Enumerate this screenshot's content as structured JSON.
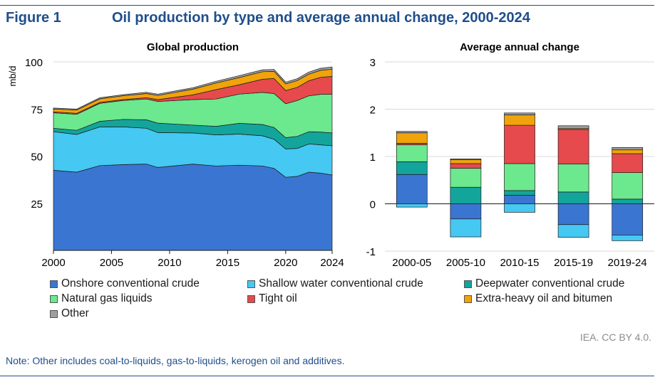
{
  "header": {
    "figure_label": "Figure 1",
    "title": "Oil production by type and average annual change, 2000-2024"
  },
  "legend": [
    {
      "label": "Onshore conventional crude",
      "color": "#3a75d1"
    },
    {
      "label": "Shallow water conventional crude",
      "color": "#45c8f2"
    },
    {
      "label": "Deepwater conventional crude",
      "color": "#13a59b"
    },
    {
      "label": "Natural gas liquids",
      "color": "#6ce88e"
    },
    {
      "label": "Tight oil",
      "color": "#e64a4c"
    },
    {
      "label": "Extra-heavy oil and bitumen",
      "color": "#f0a30a"
    },
    {
      "label": "Other",
      "color": "#9e9e9e"
    }
  ],
  "credit": "IEA. CC BY 4.0.",
  "note": "Note: Other includes coal-to-liquids, gas-to-liquids, kerogen oil and additives.",
  "chart_data": [
    {
      "type": "area",
      "title": "Global production",
      "ylabel": "mb/d",
      "xlabel": "",
      "ylim": [
        0,
        100
      ],
      "yticks": [
        25,
        50,
        75,
        100
      ],
      "xticks": [
        2000,
        2005,
        2010,
        2015,
        2020,
        2024
      ],
      "x": [
        2000,
        2002,
        2004,
        2006,
        2008,
        2009,
        2012,
        2014,
        2016,
        2018,
        2019,
        2020,
        2021,
        2022,
        2023,
        2024
      ],
      "series": [
        {
          "name": "Onshore conventional crude",
          "values": [
            42.5,
            41.5,
            45.0,
            45.5,
            45.8,
            44.0,
            45.8,
            44.8,
            45.2,
            44.8,
            43.5,
            38.8,
            39.3,
            41.5,
            41.0,
            40.0
          ]
        },
        {
          "name": "Shallow water conventional crude",
          "values": [
            20.5,
            20.0,
            20.5,
            20.0,
            19.0,
            18.5,
            16.5,
            16.5,
            16.5,
            16.0,
            15.5,
            15.0,
            14.8,
            15.0,
            15.0,
            15.5
          ]
        },
        {
          "name": "Deepwater conventional crude",
          "values": [
            1.8,
            2.2,
            3.0,
            4.0,
            4.5,
            5.0,
            4.2,
            4.5,
            5.7,
            6.0,
            6.2,
            6.0,
            6.4,
            6.5,
            6.8,
            6.8
          ]
        },
        {
          "name": "Natural gas liquids",
          "values": [
            8.2,
            8.5,
            9.5,
            10.0,
            11.0,
            11.5,
            13.5,
            14.5,
            15.5,
            17.0,
            18.0,
            18.0,
            19.0,
            19.0,
            20.0,
            20.5
          ]
        },
        {
          "name": "Tight oil",
          "values": [
            0.5,
            0.5,
            0.5,
            0.5,
            0.7,
            1.0,
            2.5,
            5.0,
            5.0,
            7.0,
            8.0,
            7.0,
            7.0,
            8.0,
            9.0,
            9.5
          ]
        },
        {
          "name": "Extra-heavy oil and bitumen",
          "values": [
            1.5,
            1.8,
            1.9,
            2.0,
            2.2,
            2.2,
            3.0,
            3.5,
            3.8,
            4.0,
            3.8,
            3.5,
            3.6,
            3.5,
            3.7,
            3.8
          ]
        },
        {
          "name": "Other",
          "values": [
            0.5,
            0.5,
            0.6,
            0.6,
            0.7,
            0.7,
            0.8,
            0.9,
            1.0,
            1.0,
            1.0,
            1.0,
            1.0,
            1.1,
            1.1,
            1.2
          ]
        }
      ]
    },
    {
      "type": "bar",
      "stacked": true,
      "title": "Average annual change",
      "ylabel": "",
      "xlabel": "",
      "ylim": [
        -1,
        3
      ],
      "yticks": [
        -1,
        0,
        1,
        2,
        3
      ],
      "categories": [
        "2000-05",
        "2005-10",
        "2010-15",
        "2015-19",
        "2019-24"
      ],
      "series": [
        {
          "name": "Onshore conventional crude",
          "values": [
            0.62,
            -0.32,
            0.18,
            -0.44,
            -0.66
          ]
        },
        {
          "name": "Shallow water conventional crude",
          "values": [
            -0.07,
            -0.38,
            -0.18,
            -0.27,
            -0.12
          ]
        },
        {
          "name": "Deepwater conventional crude",
          "values": [
            0.27,
            0.35,
            0.1,
            0.25,
            0.1
          ]
        },
        {
          "name": "Natural gas liquids",
          "values": [
            0.36,
            0.4,
            0.57,
            0.59,
            0.56
          ]
        },
        {
          "name": "Tight oil",
          "values": [
            0.03,
            0.1,
            0.81,
            0.73,
            0.4
          ]
        },
        {
          "name": "Extra-heavy oil and bitumen",
          "values": [
            0.22,
            0.08,
            0.22,
            0.02,
            0.08
          ]
        },
        {
          "name": "Other",
          "values": [
            0.03,
            0.02,
            0.04,
            0.06,
            0.05
          ]
        }
      ]
    }
  ]
}
